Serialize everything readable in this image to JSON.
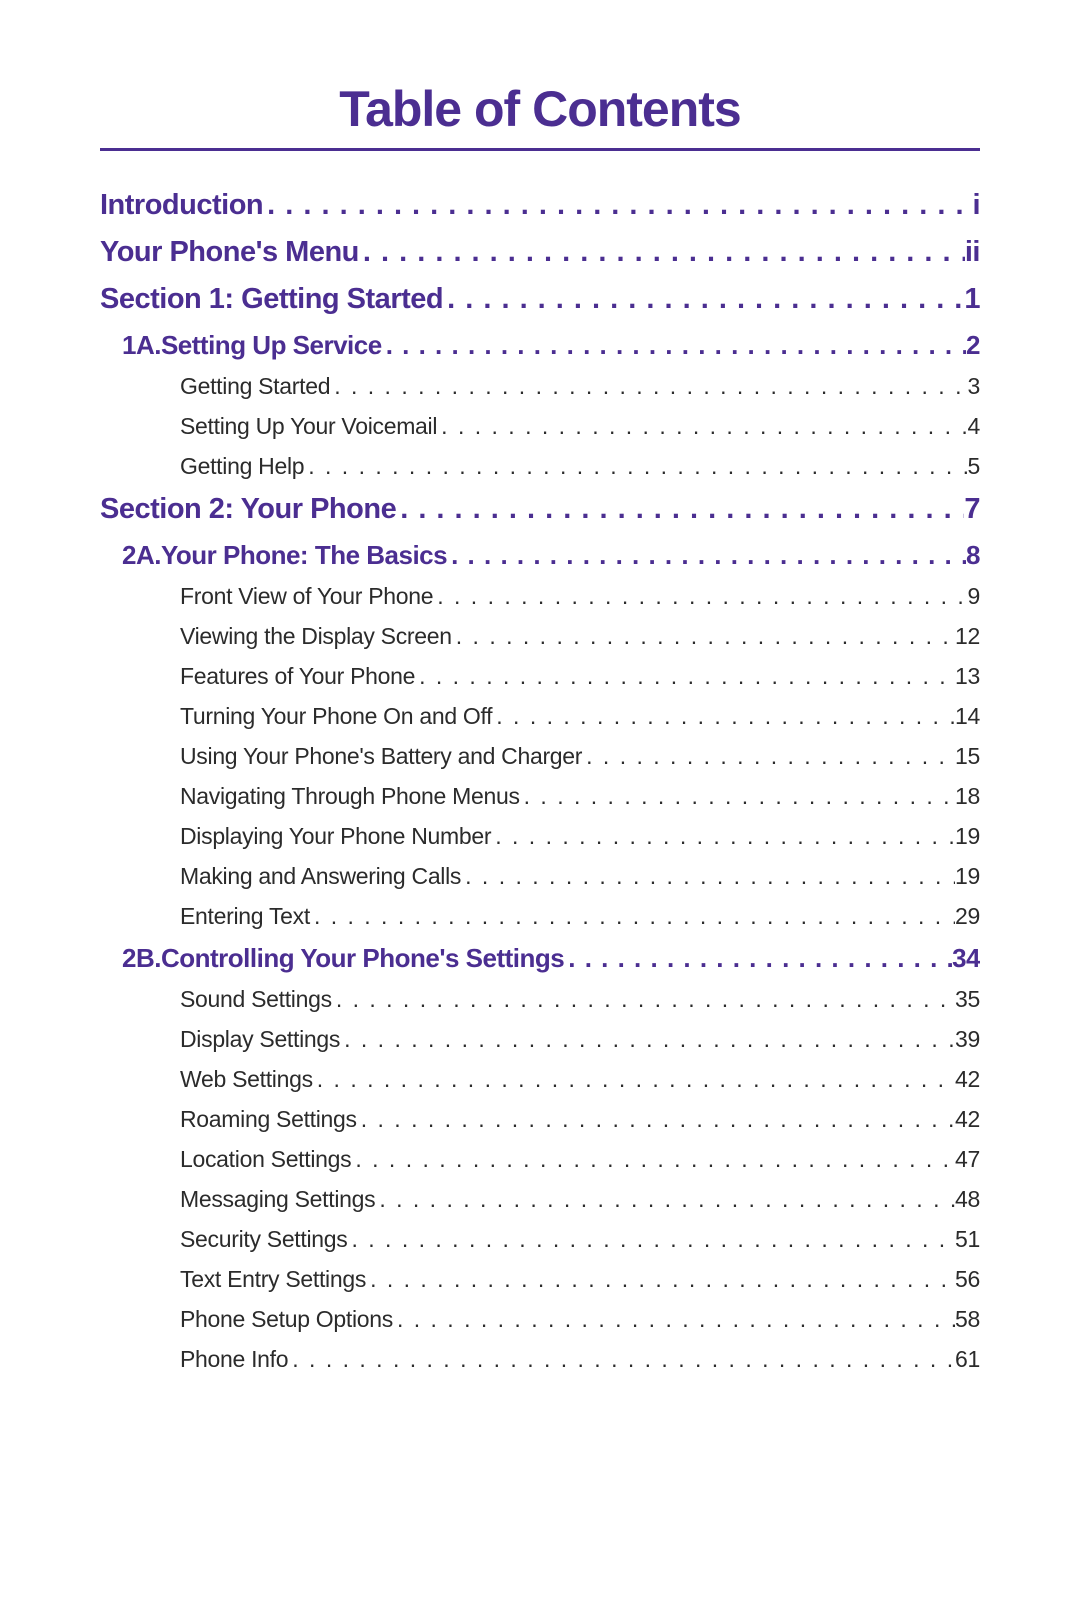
{
  "title": "Table of Contents",
  "title_color": "#4b2e91",
  "title_fontsize": 50,
  "rule_color": "#4b2e91",
  "colors": {
    "accent": "#4b2e91",
    "body": "#2b2b2b"
  },
  "entries": [
    {
      "level": 0,
      "color": "accent",
      "label": "Introduction",
      "page": "i"
    },
    {
      "level": 0,
      "color": "accent",
      "label": "Your Phone's Menu",
      "page": "ii"
    },
    {
      "level": 0,
      "color": "accent",
      "label": "Section 1: Getting Started",
      "page": "1"
    },
    {
      "level": 1,
      "color": "accent",
      "prefix": "1A.",
      "label": "Setting Up Service",
      "page": "2"
    },
    {
      "level": 2,
      "color": "body",
      "label": "Getting Started",
      "page": "3"
    },
    {
      "level": 2,
      "color": "body",
      "label": "Setting Up Your Voicemail",
      "page": "4"
    },
    {
      "level": 2,
      "color": "body",
      "label": "Getting Help",
      "page": "5"
    },
    {
      "level": 0,
      "color": "accent",
      "label": "Section 2: Your Phone",
      "page": "7"
    },
    {
      "level": 1,
      "color": "accent",
      "prefix": "2A.",
      "label": "Your Phone: The Basics",
      "page": "8"
    },
    {
      "level": 2,
      "color": "body",
      "label": "Front View of Your Phone",
      "page": "9"
    },
    {
      "level": 2,
      "color": "body",
      "label": "Viewing the Display Screen",
      "page": "12"
    },
    {
      "level": 2,
      "color": "body",
      "label": "Features of Your Phone",
      "page": "13"
    },
    {
      "level": 2,
      "color": "body",
      "label": "Turning Your Phone On and Off",
      "page": "14"
    },
    {
      "level": 2,
      "color": "body",
      "label": "Using Your Phone's Battery and Charger",
      "page": "15"
    },
    {
      "level": 2,
      "color": "body",
      "label": "Navigating Through Phone Menus",
      "page": "18"
    },
    {
      "level": 2,
      "color": "body",
      "label": "Displaying Your Phone Number",
      "page": "19"
    },
    {
      "level": 2,
      "color": "body",
      "label": "Making and Answering Calls",
      "page": "19"
    },
    {
      "level": 2,
      "color": "body",
      "label": "Entering Text",
      "page": "29"
    },
    {
      "level": 1,
      "color": "accent",
      "prefix": "2B.",
      "label": "Controlling Your Phone's Settings",
      "page": "34"
    },
    {
      "level": 2,
      "color": "body",
      "label": "Sound Settings",
      "page": "35"
    },
    {
      "level": 2,
      "color": "body",
      "label": "Display Settings",
      "page": "39"
    },
    {
      "level": 2,
      "color": "body",
      "label": "Web Settings",
      "page": "42"
    },
    {
      "level": 2,
      "color": "body",
      "label": "Roaming Settings",
      "page": "42"
    },
    {
      "level": 2,
      "color": "body",
      "label": "Location Settings",
      "page": "47"
    },
    {
      "level": 2,
      "color": "body",
      "label": "Messaging Settings",
      "page": "48"
    },
    {
      "level": 2,
      "color": "body",
      "label": "Security Settings",
      "page": "51"
    },
    {
      "level": 2,
      "color": "body",
      "label": "Text Entry Settings",
      "page": "56"
    },
    {
      "level": 2,
      "color": "body",
      "label": "Phone Setup Options",
      "page": "58"
    },
    {
      "level": 2,
      "color": "body",
      "label": "Phone Info",
      "page": "61"
    }
  ]
}
